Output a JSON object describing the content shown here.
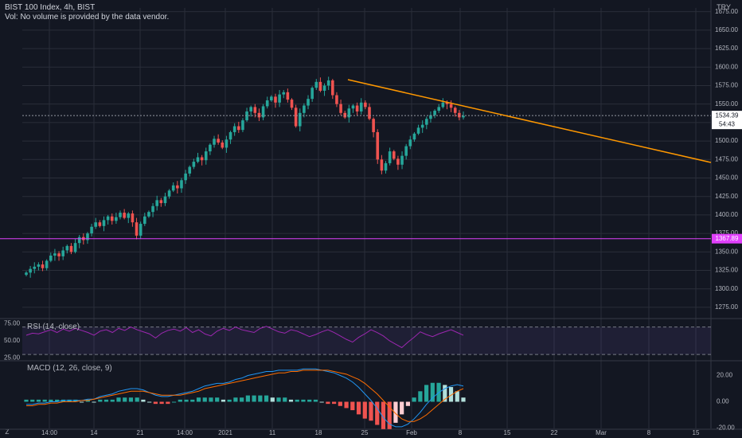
{
  "header": {
    "title": "BIST 100 Index, 4h, BIST",
    "volume_note": "Vol: No volume is provided by the data vendor.",
    "currency": "TRY"
  },
  "price_panel": {
    "last_price": "1534.39",
    "countdown": "54:43",
    "hline_label": "1367.89",
    "hline_value": 1367.89,
    "y_ticks": [
      "1675.00",
      "1650.00",
      "1625.00",
      "1600.00",
      "1575.00",
      "1550.00",
      "1525.00",
      "1500.00",
      "1475.00",
      "1450.00",
      "1425.00",
      "1400.00",
      "1375.00",
      "1350.00",
      "1325.00",
      "1300.00",
      "1275.00"
    ]
  },
  "rsi_panel": {
    "label": "RSI (14, close)",
    "y_ticks": [
      "75.00",
      "50.00",
      "25.00"
    ]
  },
  "macd_panel": {
    "label": "MACD (12, 26, close, 9)",
    "y_ticks": [
      "20.00",
      "0.00",
      "-20.00"
    ]
  },
  "x_axis": {
    "ticks": [
      "14:00",
      "14",
      "21",
      "14:00",
      "2021",
      "11",
      "18",
      "25",
      "Feb",
      "8",
      "15",
      "22",
      "Mar",
      "8",
      "15"
    ],
    "timezone_glyph": "Z"
  },
  "colors": {
    "background": "#131722",
    "grid": "#2a2e39",
    "up": "#26a69a",
    "down": "#ef5350",
    "trendline": "#ff9800",
    "hline": "#e040fb",
    "rsi": "#9c27b0",
    "macd_line": "#2196f3",
    "signal_line": "#ff6d00"
  },
  "chart_data": {
    "type": "candlestick",
    "symbol": "BIST 100 Index",
    "interval": "4h",
    "ylim": [
      1262,
      1680
    ],
    "price_path_close": [
      1322,
      1327,
      1330,
      1333,
      1328,
      1338,
      1345,
      1348,
      1344,
      1352,
      1358,
      1350,
      1362,
      1370,
      1366,
      1375,
      1384,
      1390,
      1385,
      1393,
      1398,
      1392,
      1397,
      1403,
      1396,
      1402,
      1390,
      1372,
      1388,
      1398,
      1404,
      1412,
      1420,
      1416,
      1425,
      1433,
      1440,
      1436,
      1447,
      1456,
      1465,
      1472,
      1478,
      1474,
      1486,
      1495,
      1503,
      1498,
      1491,
      1502,
      1512,
      1520,
      1515,
      1528,
      1540,
      1546,
      1538,
      1532,
      1547,
      1555,
      1560,
      1552,
      1563,
      1566,
      1556,
      1545,
      1520,
      1538,
      1548,
      1557,
      1572,
      1580,
      1568,
      1575,
      1582,
      1562,
      1550,
      1538,
      1532,
      1544,
      1548,
      1540,
      1552,
      1546,
      1530,
      1512,
      1475,
      1460,
      1470,
      1486,
      1476,
      1468,
      1480,
      1493,
      1502,
      1510,
      1518,
      1522,
      1530,
      1535,
      1541,
      1546,
      1552,
      1550,
      1545,
      1538,
      1532,
      1534
    ],
    "trendline": {
      "start_price": 1583,
      "end_price": 1471,
      "end_label": "Mar 15+"
    },
    "rsi": {
      "upper_band": 70,
      "lower_band": 30,
      "values": [
        58,
        61,
        60,
        63,
        66,
        62,
        67,
        64,
        68,
        65,
        62,
        58,
        64,
        66,
        62,
        68,
        65,
        70,
        66,
        63,
        60,
        54,
        61,
        65,
        67,
        64,
        69,
        62,
        66,
        60,
        57,
        64,
        68,
        65,
        70,
        66,
        64,
        62,
        68,
        71,
        67,
        63,
        61,
        66,
        64,
        60,
        56,
        59,
        63,
        66,
        62,
        57,
        52,
        48,
        55,
        60,
        66,
        62,
        57,
        50,
        45,
        40,
        48,
        55,
        63,
        59,
        56,
        60,
        63,
        66,
        62,
        58
      ]
    },
    "macd": {
      "values": [
        -2,
        -2,
        -1,
        -1,
        0,
        0,
        1,
        1,
        1,
        1,
        2,
        2,
        4,
        5,
        6,
        8,
        9,
        10,
        10,
        9,
        7,
        5,
        4,
        4,
        5,
        6,
        7,
        8,
        10,
        12,
        13,
        14,
        14,
        15,
        17,
        18,
        20,
        21,
        22,
        23,
        23,
        24,
        24,
        24,
        24,
        25,
        25,
        25,
        24,
        23,
        22,
        20,
        18,
        15,
        11,
        6,
        1,
        -5,
        -12,
        -17,
        -19,
        -19,
        -17,
        -13,
        -8,
        -2,
        3,
        7,
        10,
        12,
        13,
        12
      ],
      "signal": [
        -3,
        -3,
        -2,
        -2,
        -1,
        -1,
        0,
        0,
        0,
        1,
        1,
        2,
        3,
        4,
        5,
        6,
        7,
        8,
        8,
        8,
        7,
        6,
        5,
        5,
        5,
        5,
        6,
        7,
        8,
        10,
        11,
        12,
        13,
        14,
        15,
        16,
        17,
        18,
        19,
        20,
        21,
        22,
        22,
        23,
        23,
        24,
        24,
        24,
        24,
        24,
        23,
        22,
        21,
        19,
        17,
        14,
        10,
        6,
        1,
        -4,
        -9,
        -13,
        -15,
        -15,
        -13,
        -10,
        -6,
        -2,
        2,
        5,
        8,
        10
      ]
    }
  }
}
